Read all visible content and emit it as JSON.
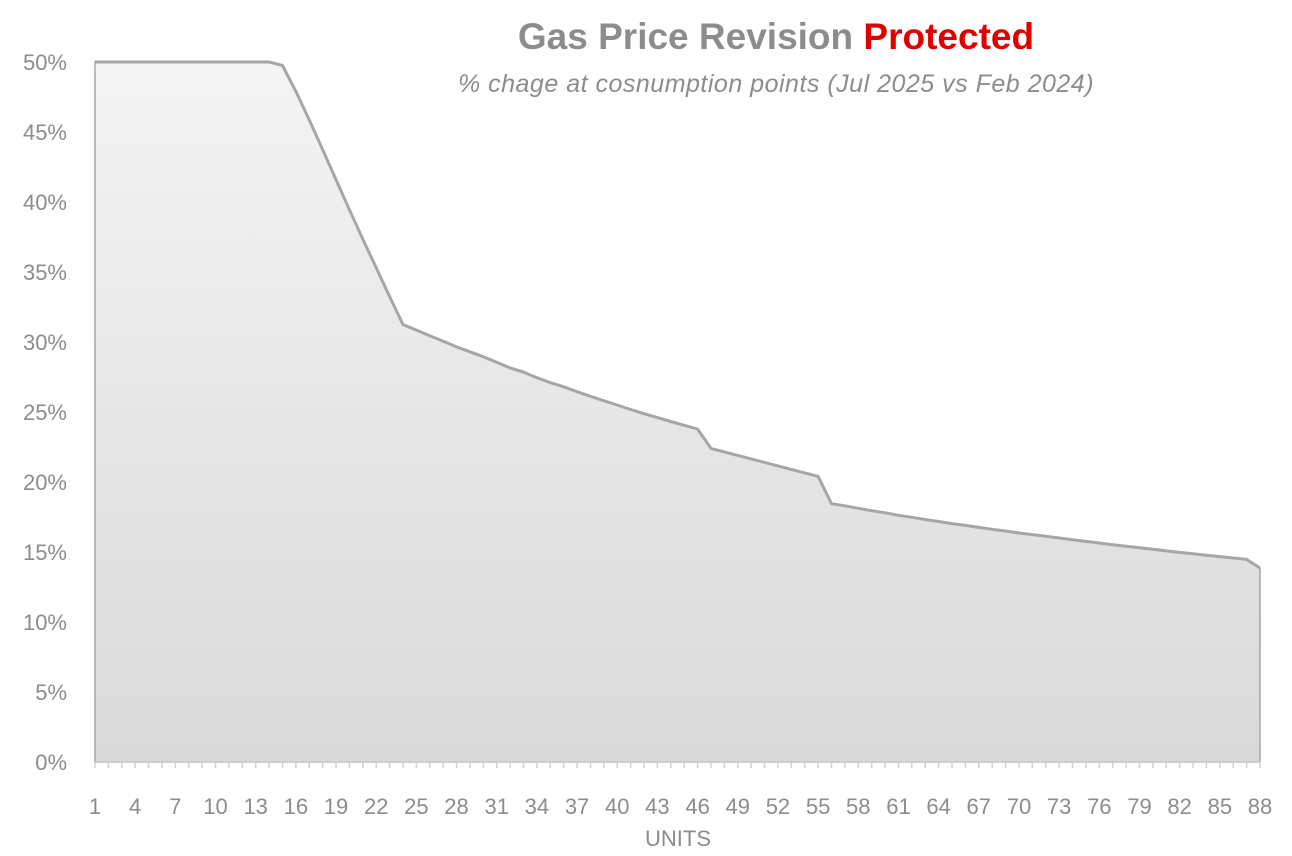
{
  "chart_data": {
    "type": "area",
    "title": "Gas Price Revision",
    "title_highlight": "Protected",
    "subtitle": "% chage at cosnumption points (Jul 2025 vs Feb 2024)",
    "xlabel": "UNITS",
    "ylabel": "",
    "ylim": [
      0,
      0.5
    ],
    "yticks": [
      0,
      0.05,
      0.1,
      0.15,
      0.2,
      0.25,
      0.3,
      0.35,
      0.4,
      0.45,
      0.5
    ],
    "ytick_labels": [
      "0%",
      "5%",
      "10%",
      "15%",
      "20%",
      "25%",
      "30%",
      "35%",
      "40%",
      "45%",
      "50%"
    ],
    "xlim": [
      1,
      88
    ],
    "xtick_labels": [
      "1",
      "4",
      "7",
      "10",
      "13",
      "16",
      "19",
      "22",
      "25",
      "28",
      "31",
      "34",
      "37",
      "40",
      "43",
      "46",
      "49",
      "52",
      "55",
      "58",
      "61",
      "64",
      "67",
      "70",
      "73",
      "76",
      "79",
      "82",
      "85",
      "88"
    ],
    "grid": false,
    "legend": "none",
    "colors": {
      "line": "#a6a6a6",
      "fill_top": "#f4f4f4",
      "fill_bottom": "#d9d9d9",
      "text": "#8c8c8c",
      "highlight": "#e00000"
    },
    "series": [
      {
        "x": [
          1,
          2,
          3,
          4,
          5,
          6,
          7,
          8,
          9,
          10,
          11,
          12,
          13,
          14,
          15,
          16,
          17,
          18,
          19,
          20,
          21,
          22,
          23,
          24,
          25,
          26,
          27,
          28,
          29,
          30,
          31,
          32,
          33,
          34,
          35,
          36,
          37,
          38,
          39,
          40,
          41,
          42,
          43,
          44,
          45,
          46,
          47,
          48,
          49,
          50,
          51,
          52,
          53,
          54,
          55,
          56,
          57,
          58,
          59,
          60,
          61,
          62,
          63,
          64,
          65,
          66,
          67,
          68,
          69,
          70,
          71,
          72,
          73,
          74,
          75,
          76,
          77,
          78,
          79,
          80,
          81,
          82,
          83,
          84,
          85,
          86,
          87,
          88
        ],
        "values": [
          0.5,
          0.5,
          0.5,
          0.5,
          0.5,
          0.5,
          0.5,
          0.5,
          0.5,
          0.5,
          0.5,
          0.5,
          0.5,
          0.5,
          0.4975,
          0.479,
          0.4585,
          0.4375,
          0.416,
          0.3945,
          0.3735,
          0.353,
          0.3325,
          0.3125,
          0.3085,
          0.3045,
          0.3005,
          0.2965,
          0.293,
          0.2895,
          0.2855,
          0.2815,
          0.2785,
          0.2745,
          0.271,
          0.268,
          0.2645,
          0.2612,
          0.258,
          0.255,
          0.2518,
          0.2488,
          0.246,
          0.2432,
          0.2405,
          0.2378,
          0.224,
          0.2215,
          0.219,
          0.2165,
          0.214,
          0.2115,
          0.209,
          0.2065,
          0.204,
          0.1845,
          0.183,
          0.1812,
          0.1795,
          0.178,
          0.1762,
          0.1748,
          0.1732,
          0.1718,
          0.1703,
          0.169,
          0.1676,
          0.1662,
          0.165,
          0.1636,
          0.1624,
          0.1612,
          0.16,
          0.1588,
          0.1576,
          0.1564,
          0.1552,
          0.1541,
          0.153,
          0.1519,
          0.1508,
          0.1497,
          0.1487,
          0.1477,
          0.1467,
          0.1457,
          0.1447,
          0.1385
        ]
      }
    ]
  }
}
